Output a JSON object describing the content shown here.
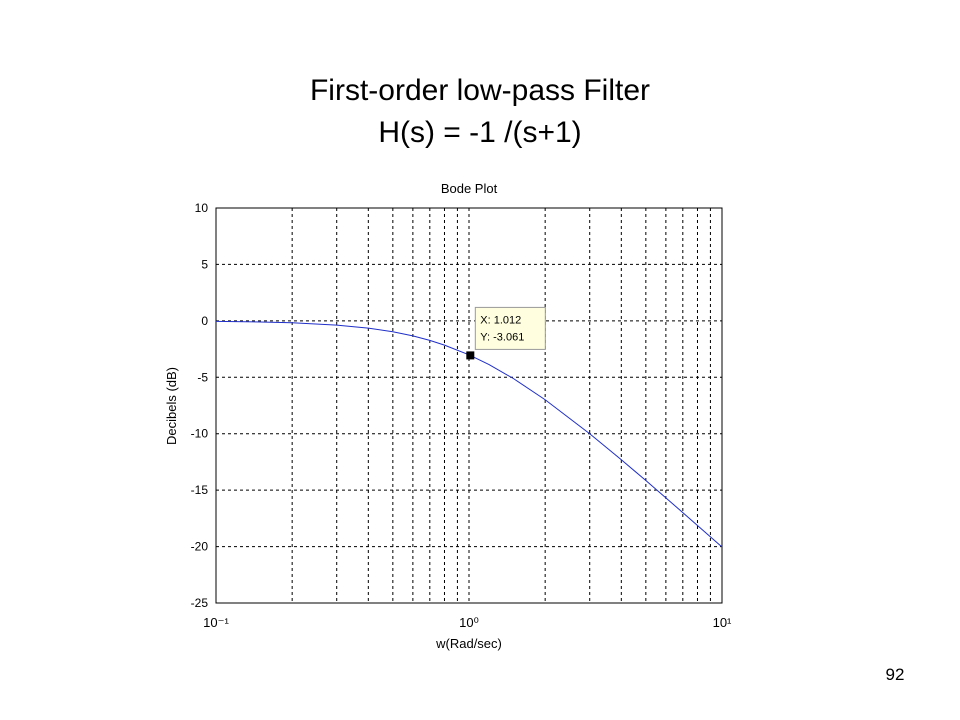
{
  "slide": {
    "title": "First-order low-pass Filter",
    "subtitle": "H(s) = -1 /(s+1)",
    "page_number": "92"
  },
  "chart_data": {
    "type": "line",
    "title": "Bode Plot",
    "x_label": "w(Rad/sec)",
    "y_label": "Decibels (dB)",
    "x_scale": "log",
    "grid": true,
    "x": [
      0.1,
      0.15,
      0.2,
      0.3,
      0.4,
      0.5,
      0.6,
      0.7,
      0.8,
      1,
      1.2,
      1.5,
      2,
      3,
      4,
      5,
      6,
      7,
      8,
      10
    ],
    "series": [
      {
        "color": "#1f2fc8",
        "values": [
          -0.043,
          -0.097,
          -0.17,
          -0.374,
          -0.645,
          -0.969,
          -1.335,
          -1.732,
          -2.149,
          -3.01,
          -3.871,
          -5.119,
          -6.99,
          -10.0,
          -12.304,
          -14.15,
          -15.682,
          -16.99,
          -18.129,
          -20.043
        ]
      }
    ],
    "xlim": [
      0.1,
      10
    ],
    "ylim": [
      -25,
      10
    ],
    "xticks": [
      {
        "value": 0.1,
        "label": "10⁻¹"
      },
      {
        "value": 1,
        "label": "10⁰"
      },
      {
        "value": 10,
        "label": "10¹"
      }
    ],
    "xminorticks": [
      0.2,
      0.3,
      0.4,
      0.5,
      0.6,
      0.7,
      0.8,
      0.9,
      2,
      3,
      4,
      5,
      6,
      7,
      8,
      9
    ],
    "yticks": [
      -25,
      -20,
      -15,
      -10,
      -5,
      0,
      5,
      10
    ],
    "datatip": {
      "x": 1.012,
      "y": -3.061,
      "labels": [
        "X: 1.012",
        "Y: -3.061"
      ]
    }
  }
}
